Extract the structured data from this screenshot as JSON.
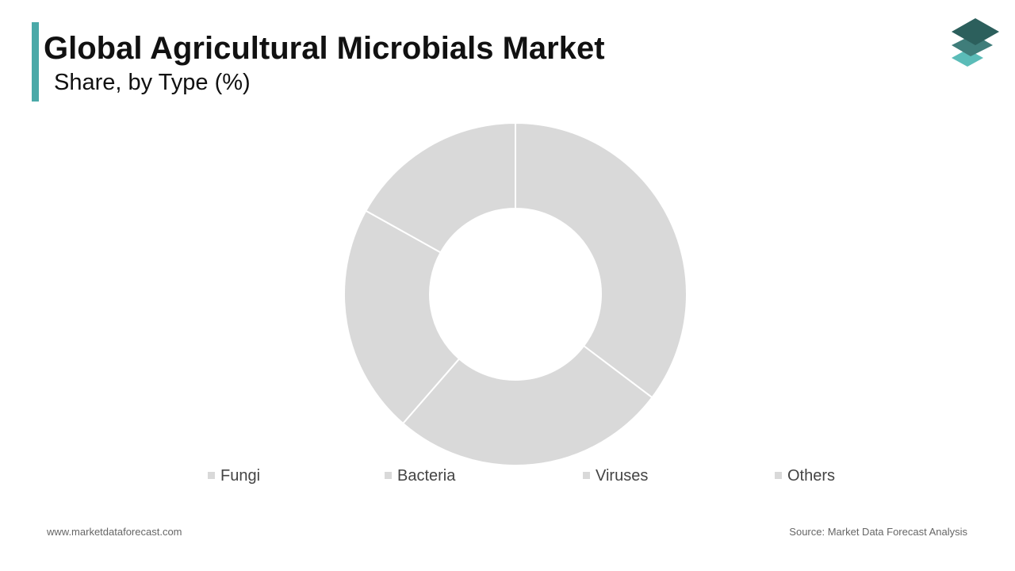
{
  "chart_data": {
    "type": "pie",
    "title": "Global Agricultural Microbials Market",
    "subtitle": "Share, by Type (%)",
    "categories": [
      "Fungi",
      "Bacteria",
      "Viruses",
      "Others"
    ],
    "values": [
      35.3,
      26.1,
      21.7,
      16.9
    ],
    "colors": [
      "#d9d9d9",
      "#d9d9d9",
      "#d9d9d9",
      "#d9d9d9"
    ],
    "hole": 0.5,
    "legend": "bottom"
  },
  "footer": {
    "website": "www.marketdataforecast.com",
    "source": "Source: Market Data Forecast Analysis"
  }
}
